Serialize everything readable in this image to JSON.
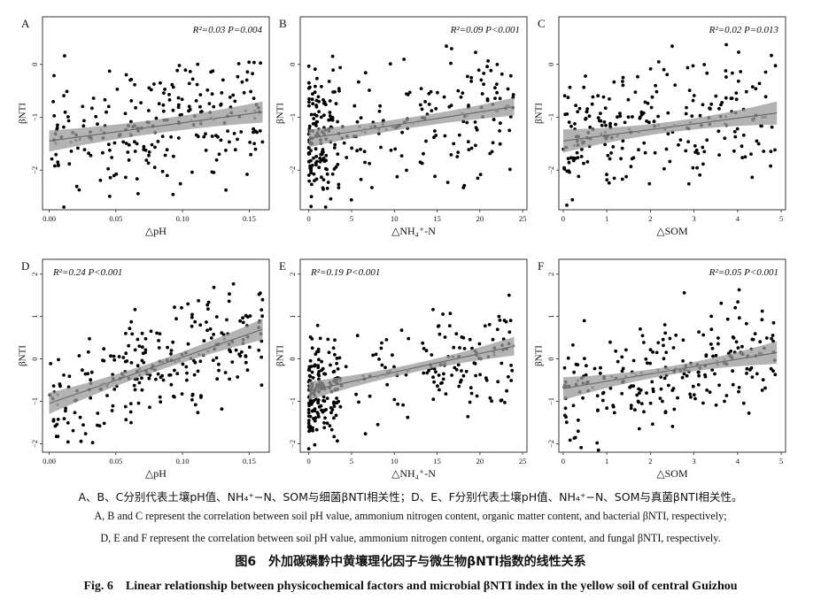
{
  "caption": {
    "zh_note": "A、B、C分别代表土壤pH值、NH₄⁺−N、SOM与细菌βNTI相关性；D、E、F分别代表土壤pH值、NH₄⁺−N、SOM与真菌βNTI相关性。",
    "en_note_1": "A, B and C represent the correlation between soil pH value, ammonium nitrogen content, organic matter content, and bacterial βNTI, respectively;",
    "en_note_2": "D, E and F represent the correlation between soil pH value, ammonium nitrogen content, organic matter content, and fungal βNTI, respectively.",
    "zh_title": "图6　外加碳磷黔中黄壤理化因子与微生物βNTI指数的线性关系",
    "en_title": "Fig. 6　Linear relationship between physicochemical factors and microbial βNTI index in the yellow soil of central Guizhou"
  },
  "colors": {
    "points": "#000000",
    "fit_line": "#666666",
    "ci_band": "#999999",
    "fit_points": "#8c8c8c"
  },
  "chart_data": [
    {
      "panel": "A",
      "type": "scatter",
      "xlabel": "△pH",
      "ylabel": "βNTI",
      "stat": "R²=0.03 P=0.004",
      "stat_pos": "top-right",
      "xlim": [
        -0.005,
        0.165
      ],
      "ylim": [
        -2.75,
        0.9
      ],
      "xticks": [
        0.0,
        0.05,
        0.1,
        0.15
      ],
      "xtick_labels": [
        "0.00",
        "0.05",
        "0.10",
        "0.15"
      ],
      "yticks": [
        -2,
        -1,
        0
      ],
      "ytick_labels": [
        "−2",
        "−1",
        "0"
      ],
      "fit": {
        "x": [
          0.0,
          0.16
        ],
        "y": [
          -1.45,
          -0.9
        ],
        "ci": [
          0.13,
          0.2
        ]
      },
      "n": 230,
      "seed": 11,
      "x_dist": "uniform",
      "x_range": [
        0.0,
        0.16
      ],
      "y_spread": 0.55
    },
    {
      "panel": "B",
      "type": "scatter",
      "xlabel": "△NH₄⁺-N",
      "ylabel": "βNTI",
      "stat": "R²=0.09 P<0.001",
      "stat_pos": "top-right",
      "xlim": [
        -1,
        25.5
      ],
      "ylim": [
        -2.75,
        0.9
      ],
      "xticks": [
        0,
        5,
        10,
        15,
        20,
        25
      ],
      "xtick_labels": [
        "0",
        "5",
        "10",
        "15",
        "20",
        "25"
      ],
      "yticks": [
        -2,
        -1,
        0
      ],
      "ytick_labels": [
        "−2",
        "−1",
        "0"
      ],
      "fit": {
        "x": [
          0.0,
          24.0
        ],
        "y": [
          -1.4,
          -0.8
        ],
        "ci": [
          0.1,
          0.17
        ]
      },
      "n": 290,
      "seed": 23,
      "x_dist": "nh4",
      "x_range": [
        0.0,
        24.0
      ],
      "y_spread": 0.6
    },
    {
      "panel": "C",
      "type": "scatter",
      "xlabel": "△SOM",
      "ylabel": "βNTI",
      "stat": "R²=0.02 P=0.013",
      "stat_pos": "top-right",
      "xlim": [
        -0.1,
        5.1
      ],
      "ylim": [
        -2.75,
        0.9
      ],
      "xticks": [
        0,
        1,
        2,
        3,
        4,
        5
      ],
      "xtick_labels": [
        "0",
        "1",
        "2",
        "3",
        "4",
        "5"
      ],
      "yticks": [
        -2,
        -1,
        0
      ],
      "ytick_labels": [
        "−2",
        "−1",
        "0"
      ],
      "fit": {
        "x": [
          0.0,
          4.9
        ],
        "y": [
          -1.45,
          -0.92
        ],
        "ci": [
          0.1,
          0.22
        ]
      },
      "n": 230,
      "seed": 37,
      "x_dist": "som",
      "x_range": [
        0.0,
        4.9
      ],
      "y_spread": 0.55
    },
    {
      "panel": "D",
      "type": "scatter",
      "xlabel": "△pH",
      "ylabel": "βNTI",
      "stat": "R²=0.24 P<0.001",
      "stat_pos": "top-left",
      "xlim": [
        -0.005,
        0.165
      ],
      "ylim": [
        -2.2,
        2.35
      ],
      "xticks": [
        0.0,
        0.05,
        0.1,
        0.15
      ],
      "xtick_labels": [
        "0.00",
        "0.05",
        "0.10",
        "0.15"
      ],
      "yticks": [
        -2,
        -1,
        0,
        1,
        2
      ],
      "ytick_labels": [
        "−2",
        "−1",
        "0",
        "1",
        "2"
      ],
      "fit": {
        "x": [
          0.0,
          0.16
        ],
        "y": [
          -1.05,
          0.7
        ],
        "ci": [
          0.12,
          0.25
        ]
      },
      "n": 240,
      "seed": 51,
      "x_dist": "uniform",
      "x_range": [
        0.0,
        0.16
      ],
      "y_spread": 0.6
    },
    {
      "panel": "E",
      "type": "scatter",
      "xlabel": "△NH₄⁺-N",
      "ylabel": "βNTI",
      "stat": "R²=0.19 P<0.001",
      "stat_pos": "top-left",
      "xlim": [
        -1,
        25.5
      ],
      "ylim": [
        -2.2,
        2.35
      ],
      "xticks": [
        0,
        5,
        10,
        15,
        20,
        25
      ],
      "xtick_labels": [
        "0",
        "5",
        "10",
        "15",
        "20",
        "25"
      ],
      "yticks": [
        -2,
        -1,
        0,
        1,
        2
      ],
      "ytick_labels": [
        "−2",
        "−1",
        "0",
        "1",
        "2"
      ],
      "fit": {
        "x": [
          0.0,
          24.0
        ],
        "y": [
          -0.75,
          0.3
        ],
        "ci": [
          0.1,
          0.22
        ]
      },
      "n": 290,
      "seed": 67,
      "x_dist": "nh4",
      "x_range": [
        0.0,
        24.0
      ],
      "y_spread": 0.55
    },
    {
      "panel": "F",
      "type": "scatter",
      "xlabel": "△SOM",
      "ylabel": "βNTI",
      "stat": "R²=0.05 P<0.001",
      "stat_pos": "top-right",
      "xlim": [
        -0.1,
        5.1
      ],
      "ylim": [
        -2.2,
        2.35
      ],
      "xticks": [
        0,
        1,
        2,
        3,
        4,
        5
      ],
      "xtick_labels": [
        "0",
        "1",
        "2",
        "3",
        "4",
        "5"
      ],
      "yticks": [
        -2,
        -1,
        0,
        1,
        2
      ],
      "ytick_labels": [
        "−2",
        "−1",
        "0",
        "1",
        "2"
      ],
      "fit": {
        "x": [
          0.0,
          4.9
        ],
        "y": [
          -0.7,
          0.15
        ],
        "ci": [
          0.1,
          0.27
        ]
      },
      "n": 230,
      "seed": 83,
      "x_dist": "som",
      "x_range": [
        0.0,
        4.9
      ],
      "y_spread": 0.65
    }
  ]
}
